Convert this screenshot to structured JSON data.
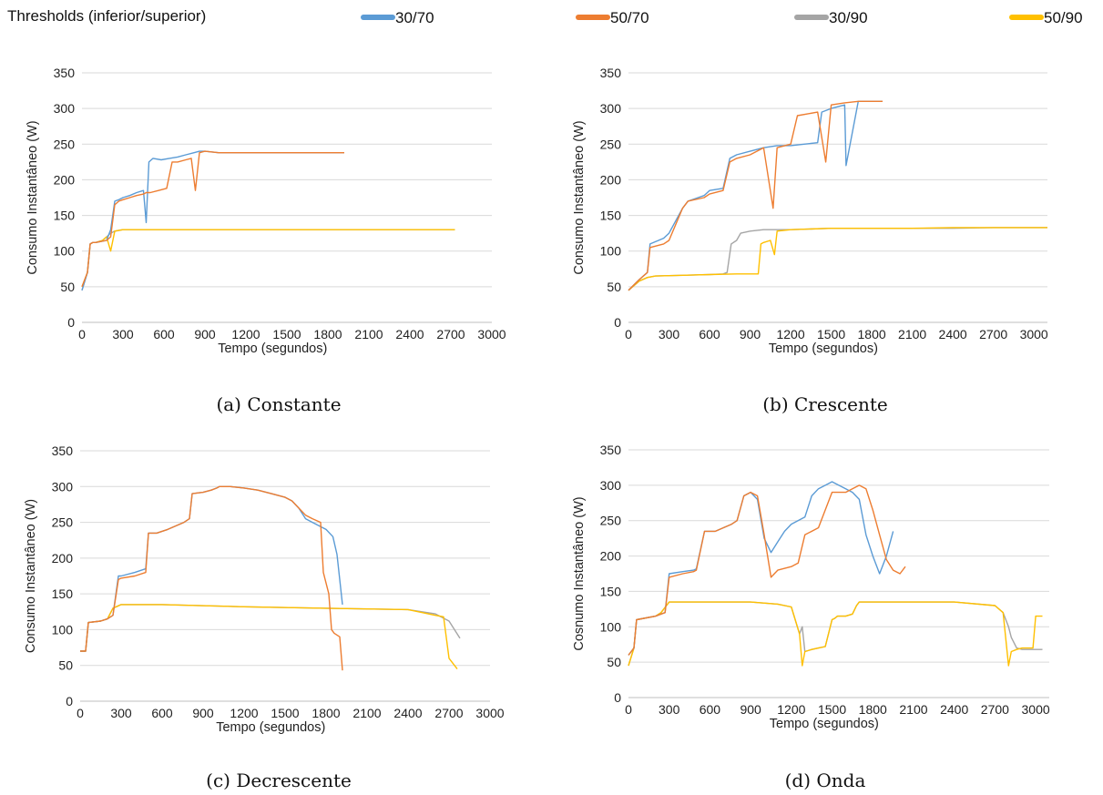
{
  "legend": {
    "title": "Thresholds (inferior/superior)",
    "items": [
      {
        "label": "30/70",
        "color": "#5b9bd5"
      },
      {
        "label": "50/70",
        "color": "#ed7d31"
      },
      {
        "label": "30/90",
        "color": "#a5a5a5"
      },
      {
        "label": "50/90",
        "color": "#ffc000"
      }
    ]
  },
  "chart_data": [
    {
      "type": "line",
      "caption": "(a) Constante",
      "xlabel": "Tempo (segundos)",
      "ylabel": "Consumo Instantâneo (W)",
      "xlim": [
        0,
        3000
      ],
      "ylim": [
        0,
        350
      ],
      "xticks": [
        0,
        300,
        600,
        900,
        1200,
        1500,
        1800,
        2100,
        2400,
        2700,
        3000
      ],
      "yticks": [
        0,
        50,
        100,
        150,
        200,
        250,
        300,
        350
      ],
      "grid": true,
      "series": [
        {
          "name": "30/70",
          "x": [
            0,
            40,
            60,
            80,
            100,
            180,
            210,
            240,
            270,
            300,
            350,
            400,
            450,
            470,
            490,
            520,
            580,
            640,
            700,
            760,
            820,
            860,
            900,
            1000,
            1200,
            1400,
            1600,
            1800,
            1920
          ],
          "y": [
            45,
            70,
            110,
            112,
            112,
            115,
            130,
            170,
            172,
            175,
            178,
            182,
            185,
            140,
            225,
            230,
            228,
            230,
            232,
            235,
            238,
            240,
            240,
            238,
            238,
            238,
            238,
            238,
            238
          ]
        },
        {
          "name": "50/70",
          "x": [
            0,
            40,
            60,
            80,
            100,
            180,
            210,
            240,
            270,
            300,
            350,
            400,
            450,
            470,
            500,
            560,
            620,
            660,
            700,
            760,
            800,
            830,
            860,
            900,
            1000,
            1200,
            1400,
            1600,
            1800,
            1920
          ],
          "y": [
            50,
            70,
            110,
            112,
            112,
            115,
            120,
            165,
            170,
            172,
            175,
            178,
            180,
            182,
            182,
            185,
            188,
            225,
            225,
            228,
            230,
            185,
            238,
            240,
            238,
            238,
            238,
            238,
            238,
            238
          ]
        },
        {
          "name": "30/90",
          "x": [
            0,
            40,
            60,
            80,
            100,
            150,
            180,
            210,
            240,
            300,
            600,
            1200,
            1800,
            2400,
            2730
          ],
          "y": [
            45,
            70,
            110,
            112,
            112,
            115,
            120,
            125,
            128,
            130,
            130,
            130,
            130,
            130,
            130
          ]
        },
        {
          "name": "50/90",
          "x": [
            0,
            40,
            60,
            80,
            100,
            150,
            180,
            210,
            240,
            300,
            600,
            1200,
            1800,
            2400,
            2730
          ],
          "y": [
            50,
            70,
            110,
            112,
            112,
            115,
            120,
            100,
            128,
            130,
            130,
            130,
            130,
            130,
            130
          ]
        }
      ]
    },
    {
      "type": "line",
      "caption": "(b) Crescente",
      "xlabel": "Tempo (segundos)",
      "ylabel": "Consumo Instantâneo (W)",
      "xlim": [
        0,
        3100
      ],
      "ylim": [
        0,
        350
      ],
      "xticks": [
        0,
        300,
        600,
        900,
        1200,
        1500,
        1800,
        2100,
        2400,
        2700,
        3000
      ],
      "yticks": [
        0,
        50,
        100,
        150,
        200,
        250,
        300,
        350
      ],
      "grid": true,
      "series": [
        {
          "name": "30/70",
          "x": [
            0,
            80,
            140,
            160,
            260,
            300,
            400,
            440,
            560,
            600,
            700,
            750,
            800,
            900,
            1000,
            1100,
            1200,
            1300,
            1400,
            1430,
            1500,
            1600,
            1610,
            1700,
            1880
          ],
          "y": [
            45,
            60,
            70,
            110,
            118,
            125,
            160,
            170,
            178,
            185,
            188,
            230,
            235,
            240,
            245,
            248,
            248,
            250,
            252,
            295,
            300,
            305,
            220,
            310,
            310
          ]
        },
        {
          "name": "50/70",
          "x": [
            0,
            80,
            140,
            160,
            260,
            300,
            400,
            440,
            560,
            600,
            700,
            750,
            800,
            900,
            1000,
            1070,
            1100,
            1200,
            1250,
            1400,
            1460,
            1500,
            1600,
            1700,
            1880
          ],
          "y": [
            45,
            60,
            70,
            105,
            110,
            115,
            160,
            170,
            175,
            180,
            185,
            225,
            230,
            235,
            245,
            160,
            245,
            250,
            290,
            295,
            225,
            305,
            308,
            310,
            310
          ]
        },
        {
          "name": "30/90",
          "x": [
            0,
            80,
            140,
            200,
            400,
            600,
            700,
            730,
            760,
            800,
            830,
            900,
            1000,
            1100,
            1200,
            1500,
            1800,
            2100,
            2400,
            2700,
            3100
          ],
          "y": [
            45,
            58,
            63,
            65,
            66,
            67,
            68,
            70,
            110,
            115,
            125,
            128,
            130,
            130,
            130,
            132,
            132,
            132,
            132,
            133,
            133
          ]
        },
        {
          "name": "50/90",
          "x": [
            0,
            80,
            140,
            200,
            400,
            600,
            800,
            960,
            980,
            1000,
            1050,
            1080,
            1100,
            1200,
            1500,
            1800,
            2100,
            2400,
            2700,
            3100
          ],
          "y": [
            45,
            58,
            63,
            65,
            66,
            67,
            68,
            68,
            110,
            112,
            115,
            95,
            128,
            130,
            132,
            132,
            132,
            133,
            133,
            133
          ]
        }
      ]
    },
    {
      "type": "line",
      "caption": "(c) Decrescente",
      "xlabel": "Tempo (segundos)",
      "ylabel": "Consumo Instantâneo (W)",
      "xlim": [
        0,
        3000
      ],
      "ylim": [
        0,
        350
      ],
      "xticks": [
        0,
        300,
        600,
        900,
        1200,
        1500,
        1800,
        2100,
        2400,
        2700,
        3000
      ],
      "yticks": [
        0,
        50,
        100,
        150,
        200,
        250,
        300,
        350
      ],
      "grid": true,
      "series": [
        {
          "name": "30/70",
          "x": [
            0,
            40,
            60,
            150,
            200,
            240,
            280,
            300,
            400,
            480,
            500,
            560,
            640,
            700,
            760,
            800,
            820,
            900,
            960,
            1000,
            1020,
            1100,
            1200,
            1300,
            1400,
            1500,
            1550,
            1600,
            1650,
            1700,
            1800,
            1850,
            1880,
            1920
          ],
          "y": [
            70,
            70,
            110,
            112,
            115,
            120,
            175,
            175,
            180,
            185,
            235,
            235,
            240,
            245,
            250,
            255,
            290,
            292,
            295,
            298,
            300,
            300,
            298,
            295,
            290,
            285,
            280,
            270,
            255,
            250,
            240,
            230,
            205,
            135
          ]
        },
        {
          "name": "50/70",
          "x": [
            0,
            40,
            60,
            150,
            200,
            240,
            280,
            300,
            400,
            480,
            500,
            560,
            640,
            700,
            760,
            800,
            820,
            900,
            960,
            1000,
            1020,
            1100,
            1200,
            1300,
            1400,
            1500,
            1550,
            1600,
            1650,
            1700,
            1760,
            1780,
            1820,
            1840,
            1860,
            1900,
            1920
          ],
          "y": [
            70,
            70,
            110,
            112,
            115,
            120,
            170,
            172,
            175,
            180,
            235,
            235,
            240,
            245,
            250,
            255,
            290,
            292,
            295,
            298,
            300,
            300,
            298,
            295,
            290,
            285,
            280,
            270,
            260,
            255,
            250,
            180,
            150,
            100,
            95,
            90,
            43
          ]
        },
        {
          "name": "30/90",
          "x": [
            0,
            40,
            60,
            150,
            200,
            240,
            300,
            600,
            1200,
            1800,
            2400,
            2600,
            2700,
            2780
          ],
          "y": [
            70,
            70,
            110,
            112,
            115,
            130,
            135,
            135,
            132,
            130,
            128,
            122,
            112,
            88
          ]
        },
        {
          "name": "50/90",
          "x": [
            0,
            40,
            60,
            150,
            200,
            240,
            300,
            600,
            1200,
            1800,
            2400,
            2600,
            2660,
            2700,
            2760
          ],
          "y": [
            70,
            70,
            110,
            112,
            115,
            130,
            135,
            135,
            132,
            130,
            128,
            120,
            118,
            60,
            45
          ]
        }
      ]
    },
    {
      "type": "line",
      "caption": "(d) Onda",
      "xlabel": "Tempo (segundos)",
      "ylabel": "Cosnumo Instantâneo (W)",
      "xlim": [
        0,
        3100
      ],
      "ylim": [
        0,
        350
      ],
      "xticks": [
        0,
        300,
        600,
        900,
        1200,
        1500,
        1800,
        2100,
        2400,
        2700,
        3000
      ],
      "yticks": [
        0,
        50,
        100,
        150,
        200,
        250,
        300,
        350
      ],
      "grid": true,
      "series": [
        {
          "name": "30/70",
          "x": [
            0,
            40,
            60,
            200,
            240,
            270,
            300,
            400,
            480,
            500,
            560,
            640,
            700,
            760,
            800,
            850,
            900,
            950,
            1000,
            1050,
            1100,
            1150,
            1200,
            1300,
            1350,
            1400,
            1450,
            1500,
            1550,
            1600,
            1650,
            1700,
            1750,
            1800,
            1850,
            1900,
            1950
          ],
          "y": [
            60,
            70,
            110,
            115,
            118,
            120,
            175,
            178,
            180,
            182,
            235,
            235,
            240,
            245,
            250,
            285,
            290,
            280,
            225,
            205,
            220,
            235,
            245,
            255,
            285,
            295,
            300,
            305,
            300,
            295,
            290,
            280,
            230,
            200,
            175,
            200,
            235
          ]
        },
        {
          "name": "50/70",
          "x": [
            0,
            40,
            60,
            200,
            240,
            270,
            300,
            400,
            480,
            500,
            560,
            640,
            700,
            760,
            800,
            850,
            900,
            950,
            1000,
            1050,
            1100,
            1200,
            1250,
            1300,
            1400,
            1500,
            1600,
            1650,
            1700,
            1750,
            1800,
            1850,
            1900,
            1950,
            2000,
            2040
          ],
          "y": [
            60,
            70,
            110,
            115,
            118,
            120,
            170,
            175,
            178,
            180,
            235,
            235,
            240,
            245,
            250,
            285,
            290,
            285,
            230,
            170,
            180,
            185,
            190,
            230,
            240,
            290,
            290,
            295,
            300,
            295,
            265,
            230,
            195,
            180,
            175,
            185
          ]
        },
        {
          "name": "30/90",
          "x": [
            0,
            40,
            60,
            200,
            240,
            300,
            600,
            900,
            1100,
            1200,
            1260,
            1280,
            1300,
            1350,
            1400,
            1450,
            1500,
            1520,
            1540,
            1600,
            1650,
            1680,
            1700,
            1800,
            2100,
            2400,
            2700,
            2760,
            2800,
            2820,
            2860,
            2900,
            3050
          ],
          "y": [
            45,
            70,
            110,
            115,
            120,
            135,
            135,
            135,
            132,
            128,
            90,
            100,
            65,
            68,
            70,
            72,
            110,
            112,
            115,
            115,
            118,
            130,
            135,
            135,
            135,
            135,
            130,
            120,
            100,
            85,
            70,
            68,
            68
          ]
        },
        {
          "name": "50/90",
          "x": [
            0,
            40,
            60,
            200,
            240,
            300,
            600,
            900,
            1100,
            1200,
            1260,
            1280,
            1300,
            1350,
            1400,
            1450,
            1500,
            1520,
            1540,
            1600,
            1650,
            1680,
            1700,
            1800,
            2100,
            2400,
            2700,
            2760,
            2800,
            2820,
            2860,
            2900,
            2980,
            3000,
            3050
          ],
          "y": [
            45,
            70,
            110,
            115,
            120,
            135,
            135,
            135,
            132,
            128,
            90,
            45,
            65,
            68,
            70,
            72,
            110,
            112,
            115,
            115,
            118,
            130,
            135,
            135,
            135,
            135,
            130,
            120,
            45,
            65,
            68,
            70,
            70,
            115,
            115
          ]
        }
      ]
    }
  ]
}
